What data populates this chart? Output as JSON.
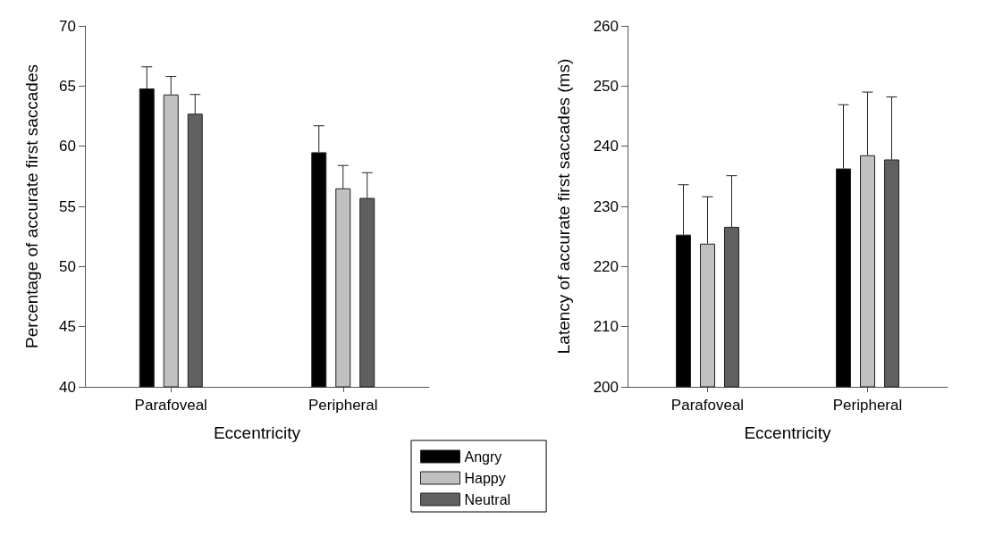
{
  "chart_data": [
    {
      "type": "bar",
      "xlabel": "Eccentricity",
      "ylabel": "Percentage of accurate first saccades",
      "categories": [
        "Parafoveal",
        "Peripheral"
      ],
      "ylim": [
        40,
        70
      ],
      "yticks": [
        40,
        45,
        50,
        55,
        60,
        65,
        70
      ],
      "grid": false,
      "legend": "bottom",
      "series": [
        {
          "name": "Angry",
          "color": "#000000",
          "values": [
            64.8,
            59.5
          ],
          "errors": [
            [
              64.8,
              66.6
            ],
            [
              59.5,
              61.7
            ]
          ]
        },
        {
          "name": "Happy",
          "color": "#c0c0c0",
          "values": [
            64.3,
            56.5
          ],
          "errors": [
            [
              64.3,
              65.8
            ],
            [
              56.5,
              58.4
            ]
          ]
        },
        {
          "name": "Neutral",
          "color": "#606060",
          "values": [
            62.7,
            55.7
          ],
          "errors": [
            [
              62.7,
              64.3
            ],
            [
              55.7,
              57.8
            ]
          ]
        }
      ]
    },
    {
      "type": "bar",
      "xlabel": "Eccentricity",
      "ylabel": "Latency of accurate first saccades (ms)",
      "categories": [
        "Parafoveal",
        "Peripheral"
      ],
      "ylim": [
        200,
        260
      ],
      "yticks": [
        200,
        210,
        220,
        230,
        240,
        250,
        260
      ],
      "grid": false,
      "series": [
        {
          "color": "#000000",
          "values": [
            225.3,
            236.3
          ],
          "errors": [
            [
              225.3,
              233.6
            ],
            [
              236.3,
              246.9
            ]
          ]
        },
        {
          "color": "#c0c0c0",
          "values": [
            223.8,
            238.5
          ],
          "errors": [
            [
              223.8,
              231.6
            ],
            [
              238.5,
              249.0
            ]
          ]
        },
        {
          "color": "#606060",
          "values": [
            226.6,
            237.8
          ],
          "errors": [
            [
              226.6,
              235.1
            ],
            [
              237.8,
              248.2
            ]
          ]
        }
      ]
    }
  ]
}
